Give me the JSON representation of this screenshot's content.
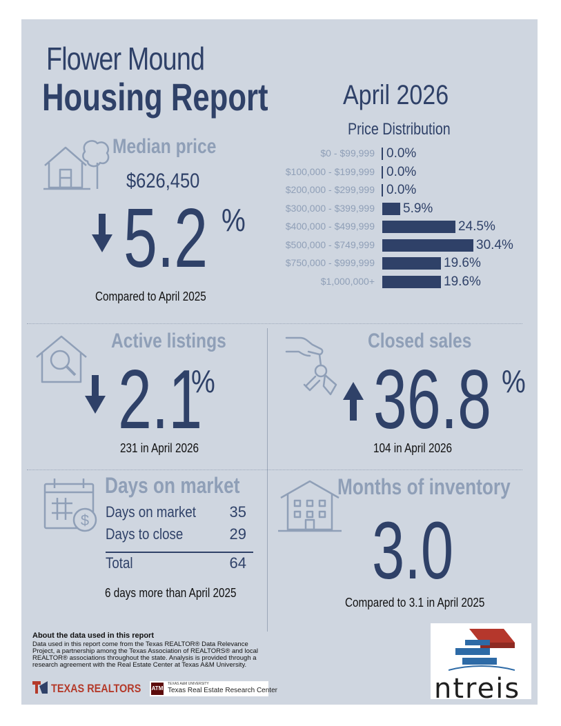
{
  "header": {
    "city": "Flower Mound",
    "title": "Housing Report",
    "month": "April 2026"
  },
  "median": {
    "title": "Median price",
    "value": "$626,450",
    "change": "5.2",
    "percent_sign": "%",
    "caption": "Compared to April 2025",
    "direction": "down"
  },
  "price_distribution": {
    "title": "Price Distribution",
    "rows": [
      {
        "label": "$0 - $99,999",
        "value": "0.0%"
      },
      {
        "label": "$100,000 - $199,999",
        "value": "0.0%"
      },
      {
        "label": "$200,000 - $299,999",
        "value": "0.0%"
      },
      {
        "label": "$300,000 - $399,999",
        "value": "5.9%"
      },
      {
        "label": "$400,000 - $499,999",
        "value": "24.5%"
      },
      {
        "label": "$500,000 - $749,999",
        "value": "30.4%"
      },
      {
        "label": "$750,000 - $999,999",
        "value": "19.6%"
      },
      {
        "label": "$1,000,000+",
        "value": "19.6%"
      }
    ]
  },
  "chart_data": {
    "type": "bar",
    "title": "Price Distribution",
    "categories": [
      "$0 - $99,999",
      "$100,000 - $199,999",
      "$200,000 - $299,999",
      "$300,000 - $399,999",
      "$400,000 - $499,999",
      "$500,000 - $749,999",
      "$750,000 - $999,999",
      "$1,000,000+"
    ],
    "values": [
      0.0,
      0.0,
      0.0,
      5.9,
      24.5,
      30.4,
      19.6,
      19.6
    ],
    "orientation": "horizontal"
  },
  "active": {
    "title": "Active listings",
    "change": "2.1",
    "percent_sign": "%",
    "caption": "231 in April 2026",
    "direction": "down"
  },
  "closed": {
    "title": "Closed sales",
    "change": "36.8",
    "percent_sign": "%",
    "caption": "104 in April 2026",
    "direction": "up"
  },
  "dom": {
    "title": "Days on market",
    "rows": [
      {
        "label": "Days on market",
        "value": "35"
      },
      {
        "label": "Days to close",
        "value": "29"
      },
      {
        "label": "Total",
        "value": "64"
      }
    ],
    "caption": "6 days more than April 2025"
  },
  "moi": {
    "title": "Months of inventory",
    "value": "3.0",
    "caption": "Compared to 3.1 in April 2025"
  },
  "footer": {
    "about_title": "About the data used in this report",
    "about_body": "Data used in this report come from the Texas REALTOR® Data Relevance Project, a partnership among the Texas Association of REALTORS® and local REALTOR® associations throughout the state. Analysis is provided through a research agreement with the Real Estate Center at Texas A&M University.",
    "texas_realtors": "TEXAS REALTORS",
    "tamu_small": "TEXAS A&M UNIVERSITY",
    "tamu_name": "Texas Real Estate Research Center",
    "ntreis": "ntreis"
  },
  "colors": {
    "navy": "#2f4168",
    "muted": "#8f9fb7",
    "panel": "#cfd6e0",
    "texas_red": "#b43a2a",
    "ntreis_red": "#b5372c",
    "ntreis_blue": "#2d6aa6"
  }
}
